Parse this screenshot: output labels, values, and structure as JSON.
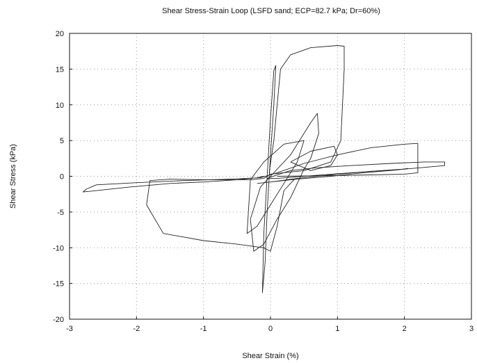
{
  "chart_data": {
    "type": "line",
    "title": "Shear Stress-Strain Loop (LSFD sand; ECP=82.7 kPa; Dr=60%)",
    "xlabel": "Shear Strain (%)",
    "ylabel": "Shear Stress (kPa)",
    "xlim": [
      -3,
      3
    ],
    "ylim": [
      -20,
      20
    ],
    "x_ticks": [
      -3,
      -2,
      -1,
      0,
      1,
      2,
      3
    ],
    "y_ticks": [
      -20,
      -15,
      -10,
      -5,
      0,
      5,
      10,
      15,
      20
    ],
    "grid": "dotted",
    "legend": "none",
    "line_color": "#222222",
    "series": [
      {
        "x": [
          -0.02,
          0.05,
          0.1,
          0.15,
          0.3,
          0.6,
          1.0,
          1.1,
          1.1,
          1.05,
          0.9,
          0.5,
          0.0,
          -0.1,
          -0.3,
          -0.9,
          -1.5,
          -1.8,
          -1.85,
          -1.6,
          -1.0,
          -0.5,
          -0.1,
          0.0,
          0.1,
          0.2,
          0.35
        ],
        "y": [
          0.5,
          5,
          10,
          15,
          17,
          18,
          18.3,
          18.2,
          15,
          5,
          2,
          0.8,
          0.3,
          -0.3,
          -0.5,
          -0.5,
          -0.4,
          -0.6,
          -4,
          -8,
          -9,
          -9.5,
          -10,
          -10.5,
          -7,
          -2,
          -0.5
        ]
      },
      {
        "x": [
          -0.1,
          -0.2,
          -0.5,
          -1.0,
          -1.5,
          -2.1,
          -2.8,
          -2.75,
          -2.6,
          -2.0,
          -1.3,
          -0.6,
          -0.15,
          0.1,
          0.5,
          1.0,
          1.5,
          2.0,
          2.2,
          2.2,
          2.0,
          1.0,
          0.1
        ],
        "y": [
          0.0,
          -0.2,
          -0.5,
          -0.8,
          -1.0,
          -1.5,
          -2.2,
          -1.8,
          -1.2,
          -0.9,
          -0.6,
          -0.4,
          -0.2,
          0.5,
          1.8,
          3.0,
          4.0,
          4.5,
          4.6,
          0.5,
          0.3,
          0.1,
          0.0
        ]
      },
      {
        "x": [
          -0.05,
          0.1,
          0.3,
          0.7,
          1.2,
          1.8,
          2.3,
          2.6,
          2.6,
          2.0,
          1.2,
          0.5,
          0.1,
          -0.05
        ],
        "y": [
          -0.3,
          0.2,
          0.8,
          1.2,
          1.5,
          1.8,
          2.0,
          2.0,
          1.5,
          1.0,
          0.5,
          0.0,
          -0.3,
          -0.3
        ]
      },
      {
        "x": [
          0.0,
          0.3,
          0.6,
          0.7,
          0.72,
          0.6,
          0.5,
          0.3,
          0.1,
          -0.1,
          -0.25,
          -0.3,
          -0.15,
          0.0
        ],
        "y": [
          0.0,
          3.0,
          7.5,
          8.8,
          6.0,
          2.5,
          1.0,
          -3.0,
          -6.0,
          -9.5,
          -10.5,
          -6.0,
          -1.5,
          0.0
        ]
      },
      {
        "x": [
          -0.05,
          0.0,
          0.05,
          0.08,
          0.05,
          0.0,
          -0.05,
          -0.08,
          -0.12,
          -0.1,
          -0.05
        ],
        "y": [
          0.0,
          8.0,
          14.8,
          15.5,
          10.0,
          3.0,
          -5.0,
          -12.0,
          -16.3,
          -8.0,
          0.0
        ]
      },
      {
        "x": [
          -0.2,
          0.0,
          0.4,
          0.9,
          1.4,
          1.9,
          2.05,
          2.0,
          1.5,
          0.9,
          0.4,
          0.0,
          -0.2
        ],
        "y": [
          -1.0,
          -0.8,
          -0.4,
          0.0,
          0.5,
          0.9,
          1.1,
          1.0,
          0.7,
          0.2,
          -0.3,
          -0.8,
          -1.0
        ]
      },
      {
        "x": [
          -0.3,
          -0.1,
          0.2,
          0.5,
          0.4,
          0.2,
          0.0,
          -0.2,
          -0.35,
          -0.3
        ],
        "y": [
          -0.5,
          2.0,
          4.5,
          5.0,
          2.0,
          -1.0,
          -4.0,
          -7.0,
          -8.0,
          -0.5
        ]
      },
      {
        "x": [
          0.3,
          0.6,
          0.95,
          1.0,
          0.9,
          0.6,
          0.3
        ],
        "y": [
          2.0,
          3.5,
          4.2,
          3.0,
          1.5,
          0.8,
          2.0
        ]
      }
    ]
  }
}
